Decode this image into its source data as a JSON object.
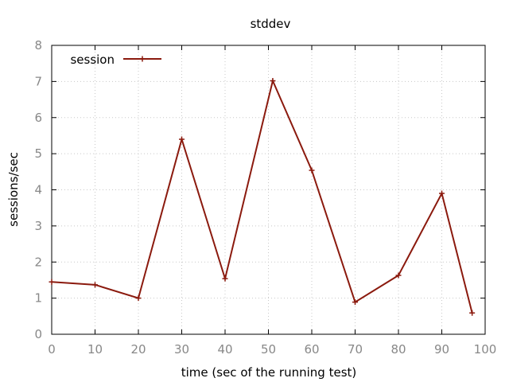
{
  "chart_data": {
    "type": "line",
    "title": "stddev",
    "xlabel": "time (sec of the running test)",
    "ylabel": "sessions/sec",
    "xlim": [
      0,
      100
    ],
    "ylim": [
      0,
      8
    ],
    "xticks": [
      0,
      10,
      20,
      30,
      40,
      50,
      60,
      70,
      80,
      90,
      100
    ],
    "yticks": [
      0,
      1,
      2,
      3,
      4,
      5,
      6,
      7,
      8
    ],
    "grid": true,
    "legend_position": "top-left",
    "series": [
      {
        "name": "session",
        "color": "#8b1a0e",
        "marker": "plus",
        "x": [
          0,
          10,
          20,
          30,
          40,
          51,
          60,
          70,
          80,
          90,
          97
        ],
        "y": [
          1.45,
          1.37,
          1.0,
          5.4,
          1.54,
          7.02,
          4.54,
          0.89,
          1.63,
          3.9,
          0.59
        ]
      }
    ]
  }
}
